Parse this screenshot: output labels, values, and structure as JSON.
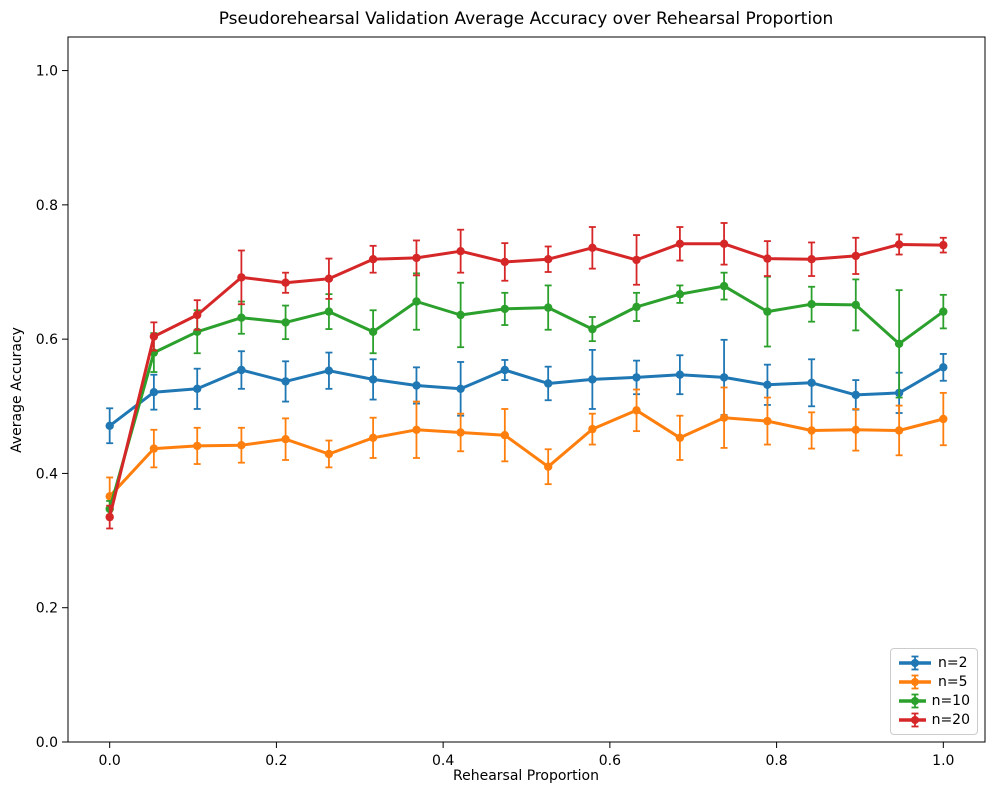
{
  "chart_data": {
    "type": "line",
    "title": "Pseudorehearsal Validation Average Accuracy over Rehearsal Proportion",
    "xlabel": "Rehearsal Proportion",
    "ylabel": "Average Accuracy",
    "xlim": [
      -0.05,
      1.05
    ],
    "ylim": [
      0.0,
      1.05
    ],
    "x_tick_labels": [
      "0.0",
      "0.2",
      "0.4",
      "0.6",
      "0.8",
      "1.0"
    ],
    "x_tick_values": [
      0.0,
      0.2,
      0.4,
      0.6,
      0.8,
      1.0
    ],
    "y_tick_labels": [
      "0.0",
      "0.2",
      "0.4",
      "0.6",
      "0.8",
      "1.0"
    ],
    "y_tick_values": [
      0.0,
      0.2,
      0.4,
      0.6,
      0.8,
      1.0
    ],
    "grid": false,
    "legend_position": "lower right",
    "marker": "o",
    "error_bars": true,
    "x": [
      0.0,
      0.053,
      0.105,
      0.158,
      0.211,
      0.263,
      0.316,
      0.368,
      0.421,
      0.474,
      0.526,
      0.579,
      0.632,
      0.684,
      0.737,
      0.789,
      0.842,
      0.895,
      0.947,
      1.0
    ],
    "series": [
      {
        "name": "n=2",
        "color": "#1f77b4",
        "values": [
          0.471,
          0.521,
          0.526,
          0.554,
          0.537,
          0.553,
          0.54,
          0.531,
          0.526,
          0.554,
          0.534,
          0.54,
          0.543,
          0.547,
          0.543,
          0.532,
          0.535,
          0.517,
          0.52,
          0.558
        ],
        "errors": [
          0.026,
          0.026,
          0.03,
          0.028,
          0.03,
          0.027,
          0.03,
          0.027,
          0.04,
          0.015,
          0.025,
          0.044,
          0.025,
          0.029,
          0.056,
          0.03,
          0.035,
          0.022,
          0.03,
          0.02
        ]
      },
      {
        "name": "n=5",
        "color": "#ff7f0e",
        "values": [
          0.366,
          0.437,
          0.441,
          0.442,
          0.451,
          0.429,
          0.453,
          0.465,
          0.461,
          0.457,
          0.41,
          0.466,
          0.494,
          0.453,
          0.483,
          0.478,
          0.464,
          0.465,
          0.464,
          0.481
        ],
        "errors": [
          0.028,
          0.028,
          0.027,
          0.026,
          0.031,
          0.02,
          0.03,
          0.042,
          0.028,
          0.039,
          0.026,
          0.023,
          0.031,
          0.033,
          0.045,
          0.035,
          0.027,
          0.031,
          0.037,
          0.039
        ]
      },
      {
        "name": "n=10",
        "color": "#2ca02c",
        "values": [
          0.347,
          0.58,
          0.611,
          0.632,
          0.625,
          0.641,
          0.611,
          0.656,
          0.636,
          0.645,
          0.647,
          0.615,
          0.648,
          0.667,
          0.679,
          0.641,
          0.652,
          0.651,
          0.593,
          0.641
        ],
        "errors": [
          0.012,
          0.029,
          0.032,
          0.024,
          0.025,
          0.026,
          0.032,
          0.042,
          0.048,
          0.024,
          0.033,
          0.018,
          0.021,
          0.013,
          0.02,
          0.052,
          0.026,
          0.038,
          0.08,
          0.025
        ]
      },
      {
        "name": "n=20",
        "color": "#d62728",
        "values": [
          0.335,
          0.604,
          0.636,
          0.692,
          0.684,
          0.69,
          0.719,
          0.721,
          0.731,
          0.715,
          0.719,
          0.736,
          0.718,
          0.742,
          0.742,
          0.72,
          0.719,
          0.724,
          0.741,
          0.74
        ],
        "errors": [
          0.017,
          0.021,
          0.022,
          0.04,
          0.015,
          0.03,
          0.02,
          0.026,
          0.032,
          0.028,
          0.019,
          0.031,
          0.037,
          0.025,
          0.031,
          0.026,
          0.025,
          0.027,
          0.015,
          0.011
        ]
      }
    ]
  }
}
